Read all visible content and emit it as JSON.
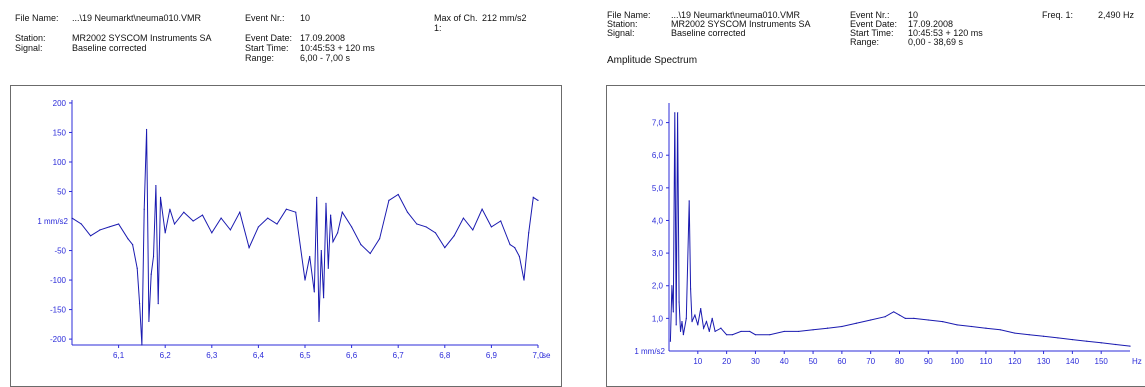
{
  "left_header": {
    "file_name_label": "File Name:",
    "file_name": "...\\19 Neumarkt\\neuma010.VMR",
    "event_nr_label": "Event Nr.:",
    "event_nr": "10",
    "max_label": "Max of Ch.",
    "max_sub": "1:",
    "max_value": "212 mm/s2",
    "station_label": "Station:",
    "station": "MR2002 SYSCOM Instruments SA",
    "signal_label": "Signal:",
    "signal": "Baseline corrected",
    "event_date_label": "Event Date:",
    "event_date": "17.09.2008",
    "start_time_label": "Start Time:",
    "start_time": "10:45:53 + 120 ms",
    "range_label": "Range:",
    "range": "6,00 - 7,00 s"
  },
  "right_header": {
    "file_name_label": "File Name:",
    "file_name": "...\\19 Neumarkt\\neuma010.VMR",
    "station_label": "Station:",
    "station": "MR2002 SYSCOM Instruments SA",
    "signal_label": "Signal:",
    "signal": "Baseline corrected",
    "event_nr_label": "Event Nr.:",
    "event_nr": "10",
    "event_date_label": "Event Date:",
    "event_date": "17.09.2008",
    "start_time_label": "Start Time:",
    "start_time": "10:45:53 + 120 ms",
    "range_label": "Range:",
    "range": "0,00 - 38,69 s",
    "freq_label": "Freq. 1:",
    "freq_value": "2,490 Hz",
    "title": "Amplitude Spectrum"
  },
  "colors": {
    "trace": "#1a1ab0",
    "ticks": "#2b2bd9",
    "frame": "#6b6b6b"
  },
  "chart_data": [
    {
      "type": "line",
      "ylabel": "1 mm/s2",
      "x_unit_label": "se",
      "xlim": [
        6.0,
        7.0
      ],
      "ylim": [
        -210,
        205
      ],
      "x_ticks": [
        "6,1",
        "6,2",
        "6,3",
        "6,4",
        "6,5",
        "6,6",
        "6,7",
        "6,8",
        "6,9",
        "7,0"
      ],
      "y_ticks": [
        "200",
        "150",
        "100",
        "50",
        "-50",
        "-100",
        "-150",
        "-200"
      ],
      "x": [
        6.0,
        6.02,
        6.04,
        6.06,
        6.08,
        6.1,
        6.12,
        6.13,
        6.14,
        6.145,
        6.15,
        6.155,
        6.16,
        6.165,
        6.17,
        6.175,
        6.18,
        6.185,
        6.19,
        6.2,
        6.21,
        6.22,
        6.24,
        6.26,
        6.28,
        6.3,
        6.32,
        6.34,
        6.36,
        6.38,
        6.4,
        6.42,
        6.44,
        6.46,
        6.48,
        6.5,
        6.51,
        6.52,
        6.525,
        6.53,
        6.535,
        6.54,
        6.545,
        6.55,
        6.555,
        6.56,
        6.57,
        6.58,
        6.6,
        6.62,
        6.64,
        6.66,
        6.68,
        6.7,
        6.72,
        6.74,
        6.76,
        6.78,
        6.8,
        6.82,
        6.84,
        6.86,
        6.88,
        6.9,
        6.92,
        6.94,
        6.95,
        6.96,
        6.97,
        6.98,
        6.99,
        7.0
      ],
      "y": [
        5,
        -5,
        -25,
        -15,
        -10,
        -5,
        -30,
        -40,
        -80,
        -140,
        -210,
        20,
        155,
        -170,
        -90,
        -60,
        60,
        -140,
        40,
        -20,
        20,
        -5,
        15,
        0,
        10,
        -20,
        5,
        -15,
        15,
        -45,
        -10,
        5,
        -5,
        20,
        15,
        -100,
        -60,
        -120,
        40,
        -170,
        -50,
        -130,
        30,
        -80,
        10,
        -35,
        -20,
        15,
        -10,
        -40,
        -55,
        -30,
        35,
        45,
        15,
        -5,
        -10,
        -20,
        -45,
        -25,
        5,
        -15,
        20,
        -10,
        0,
        -40,
        -45,
        -60,
        -100,
        -20,
        40,
        35
      ]
    },
    {
      "type": "line",
      "ylabel": "1 mm/s2",
      "x_unit_label": "Hz",
      "xlim": [
        0,
        160
      ],
      "ylim": [
        0,
        7.6
      ],
      "x_ticks": [
        "10",
        "20",
        "30",
        "40",
        "50",
        "60",
        "70",
        "80",
        "90",
        "100",
        "110",
        "120",
        "130",
        "140",
        "150"
      ],
      "y_ticks": [
        "7,0",
        "6,0",
        "5,0",
        "4,0",
        "3,0",
        "2,0",
        "1,0"
      ],
      "x": [
        0.5,
        1,
        1.5,
        2,
        2.49,
        3,
        3.5,
        4,
        4.5,
        5,
        6,
        7,
        7.5,
        8,
        9,
        10,
        11,
        12,
        13,
        14,
        15,
        16,
        18,
        20,
        22,
        25,
        28,
        30,
        35,
        40,
        45,
        50,
        55,
        60,
        65,
        70,
        75,
        78,
        80,
        82,
        85,
        90,
        95,
        100,
        105,
        110,
        115,
        120,
        125,
        130,
        135,
        140,
        145,
        150,
        155,
        160
      ],
      "y": [
        0.3,
        2.0,
        1.2,
        7.3,
        0.8,
        7.3,
        1.5,
        0.6,
        0.9,
        0.5,
        1.0,
        4.6,
        1.9,
        0.9,
        1.1,
        0.8,
        1.3,
        0.7,
        0.9,
        0.6,
        1.0,
        0.6,
        0.7,
        0.5,
        0.5,
        0.6,
        0.6,
        0.5,
        0.5,
        0.6,
        0.6,
        0.65,
        0.7,
        0.75,
        0.85,
        0.95,
        1.05,
        1.2,
        1.1,
        1.0,
        1.0,
        0.95,
        0.9,
        0.8,
        0.75,
        0.7,
        0.65,
        0.55,
        0.5,
        0.45,
        0.4,
        0.35,
        0.3,
        0.25,
        0.2,
        0.15
      ]
    }
  ]
}
